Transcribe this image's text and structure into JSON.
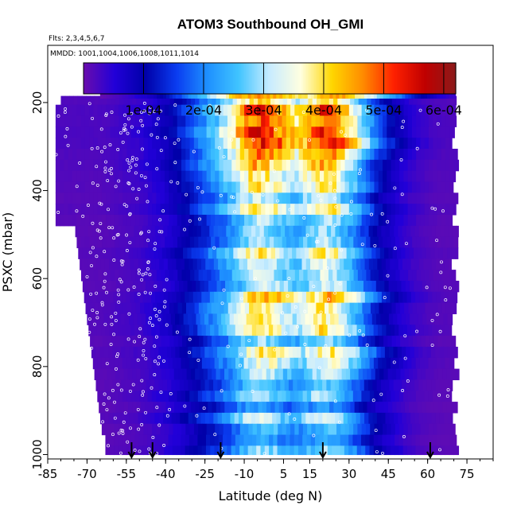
{
  "chart_data": {
    "type": "heatmap",
    "title": "ATOM3 Southbound OH_GMI",
    "flights_note": "Flts: 2,3,4,5,6,7",
    "mmdd_note": "MMDD: 1001,1004,1006,1008,1011,1014",
    "xlabel": "Latitude (deg N)",
    "ylabel": "PSXC (mbar)",
    "xlim": [
      -85,
      85
    ],
    "ylim": [
      1010,
      70
    ],
    "x_ticks": [
      -85,
      -70,
      -55,
      -40,
      -25,
      -10,
      5,
      15,
      30,
      45,
      60,
      75
    ],
    "x_tick_labels": [
      "-85",
      "-70",
      "-55",
      "-40",
      "-25",
      "-10",
      "5",
      "15",
      "30",
      "45",
      "60",
      "75"
    ],
    "y_ticks": [
      200,
      400,
      600,
      800,
      1000
    ],
    "y_tick_labels": [
      "200",
      "400",
      "600",
      "800",
      "1000"
    ],
    "colorbar": {
      "min": 0,
      "max": 0.00062,
      "ticks": [
        0.0001,
        0.0002,
        0.0003,
        0.0004,
        0.0005,
        0.0006
      ],
      "tick_labels": [
        "1e-04",
        "2e-04",
        "3e-04",
        "4e-04",
        "5e-04",
        "6e-04"
      ],
      "colors": [
        "#6a0dad",
        "#2200d8",
        "#0000a8",
        "#0a3cf0",
        "#1e90ff",
        "#40c4ff",
        "#c8ecff",
        "#ffffe0",
        "#ffd700",
        "#ff8c00",
        "#ff2000",
        "#c00000",
        "#8b1a1a"
      ]
    },
    "profile": {
      "lat": [
        -65,
        -60,
        -55,
        -50,
        -45,
        -40,
        -35,
        -30,
        -25,
        -20,
        -15,
        -10,
        -5,
        0,
        5,
        10,
        15,
        20,
        25,
        30,
        35,
        40,
        45,
        50,
        55,
        60,
        65,
        70
      ],
      "oh_mid": [
        1.5e-05,
        2e-05,
        2.5e-05,
        3e-05,
        4.5e-05,
        6e-05,
        9e-05,
        0.00012,
        0.00016,
        0.0002,
        0.00025,
        0.00032,
        0.00036,
        0.00034,
        0.00029,
        0.00027,
        0.00032,
        0.00036,
        0.00033,
        0.00026,
        0.00019,
        0.00012,
        8e-05,
        5e-05,
        3e-05,
        2e-05,
        1.5e-05,
        1.5e-05
      ]
    },
    "layers_mbar": [
      185,
      205,
      230,
      255,
      280,
      305,
      330,
      355,
      380,
      405,
      430,
      455,
      480,
      505,
      530,
      555,
      580,
      605,
      630,
      655,
      680,
      705,
      730,
      755,
      780,
      805,
      830,
      855,
      880,
      905,
      930,
      955,
      980,
      1000
    ],
    "upper_band": {
      "p_top": 172,
      "p_bottom": 190,
      "lat": [
        -65,
        -55,
        -45,
        -35,
        -25,
        -15,
        -5,
        5,
        15,
        20,
        25,
        30,
        35,
        40,
        45,
        55,
        65,
        70
      ],
      "oh": [
        5e-06,
        3.5e-05,
        8e-05,
        0.00016,
        0.00027,
        0.00042,
        0.00046,
        0.00042,
        0.00038,
        0.00044,
        0.00046,
        0.00042,
        0.00036,
        0.0003,
        0.00024,
        0.00012,
        5e-05,
        3e-05
      ]
    },
    "sample_lat_range": [
      -85,
      72
    ],
    "sample_dense_lat_range": [
      -70,
      -40
    ],
    "markers_lat": [
      -53,
      -45,
      -19,
      20,
      61
    ]
  }
}
